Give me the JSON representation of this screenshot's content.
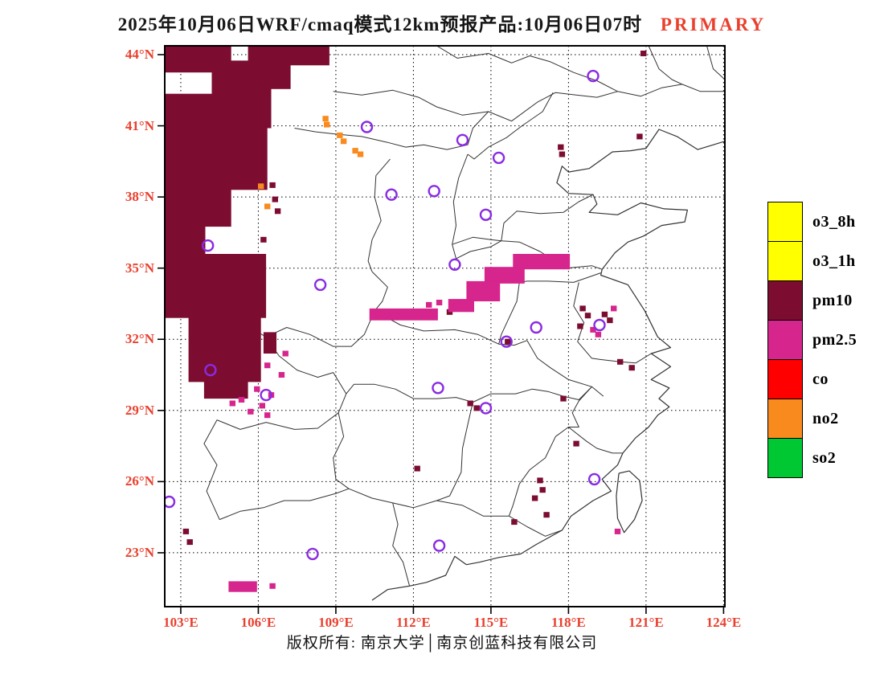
{
  "title": {
    "main": "2025年10月06日WRF/cmaq模式12km预报产品:10月06日07时",
    "tag": "PRIMARY"
  },
  "colors": {
    "accent_red": "#e9402e",
    "map_line": "#333333",
    "grid_line": "#000000",
    "frame": "#000000"
  },
  "axes": {
    "lat_labels": [
      "44°N",
      "41°N",
      "38°N",
      "35°N",
      "32°N",
      "29°N",
      "26°N",
      "23°N"
    ],
    "lat_values": [
      44,
      41,
      38,
      35,
      32,
      29,
      26,
      23
    ],
    "lon_labels": [
      "103°E",
      "106°E",
      "109°E",
      "112°E",
      "115°E",
      "118°E",
      "121°E",
      "124°E"
    ],
    "lon_values": [
      103,
      106,
      109,
      112,
      115,
      118,
      121,
      124
    ]
  },
  "legend": {
    "items": [
      {
        "label": "o3_8h",
        "color": "#ffff00"
      },
      {
        "label": "o3_1h",
        "color": "#ffff00"
      },
      {
        "label": "pm10",
        "color": "#7c0d30"
      },
      {
        "label": "pm2.5",
        "color": "#d6258c"
      },
      {
        "label": "co",
        "color": "#fe0000"
      },
      {
        "label": "no2",
        "color": "#f98a1e"
      },
      {
        "label": "so2",
        "color": "#00c832"
      }
    ]
  },
  "map_overlays": {
    "pm10_color": "#7c0d30",
    "pm25_color": "#d6258c",
    "no2_color": "#f98a1e",
    "marker_color": "#8a2be2",
    "pm10_blocks": [
      [
        102.38,
        43.25,
        104.95,
        44.38
      ],
      [
        105.6,
        43.55,
        108.75,
        44.38
      ],
      [
        104.2,
        42.55,
        107.25,
        43.75
      ],
      [
        102.38,
        40.9,
        104.35,
        42.35
      ],
      [
        104.2,
        40.9,
        106.5,
        42.9
      ],
      [
        102.38,
        38.3,
        106.35,
        41.1
      ],
      [
        102.38,
        36.75,
        104.95,
        38.5
      ],
      [
        102.38,
        35.1,
        103.95,
        36.9
      ],
      [
        102.38,
        32.9,
        106.3,
        35.6
      ],
      [
        103.3,
        30.2,
        106.1,
        33.1
      ],
      [
        103.9,
        29.5,
        105.6,
        30.4
      ],
      [
        106.2,
        31.4,
        106.7,
        32.3
      ]
    ],
    "pm10_cells": [
      [
        106.55,
        38.5
      ],
      [
        106.65,
        37.9
      ],
      [
        106.75,
        37.4
      ],
      [
        106.2,
        36.2
      ],
      [
        120.9,
        44.05
      ],
      [
        120.75,
        40.55
      ],
      [
        117.7,
        40.1
      ],
      [
        117.75,
        39.8
      ],
      [
        114.55,
        34.0
      ],
      [
        114.8,
        33.75
      ],
      [
        113.4,
        33.15
      ],
      [
        118.55,
        33.3
      ],
      [
        118.75,
        33.0
      ],
      [
        118.45,
        32.55
      ],
      [
        119.4,
        33.05
      ],
      [
        119.6,
        32.8
      ],
      [
        120.0,
        31.05
      ],
      [
        120.45,
        30.8
      ],
      [
        115.65,
        31.9
      ],
      [
        114.2,
        29.3
      ],
      [
        114.45,
        29.1
      ],
      [
        117.8,
        29.5
      ],
      [
        112.15,
        26.55
      ],
      [
        116.9,
        26.05
      ],
      [
        117.0,
        25.65
      ],
      [
        116.7,
        25.3
      ],
      [
        117.15,
        24.6
      ],
      [
        118.3,
        27.6
      ],
      [
        115.9,
        24.3
      ],
      [
        103.2,
        23.9
      ],
      [
        103.35,
        23.45
      ]
    ],
    "pm25_blocks": [
      [
        115.85,
        34.95,
        118.05,
        35.6
      ],
      [
        114.75,
        34.35,
        116.3,
        35.05
      ],
      [
        114.05,
        33.6,
        115.35,
        34.45
      ],
      [
        113.35,
        33.15,
        114.35,
        33.7
      ],
      [
        110.3,
        32.8,
        112.95,
        33.3
      ],
      [
        104.85,
        21.35,
        105.95,
        21.8
      ]
    ],
    "pm25_cells": [
      [
        106.35,
        30.9
      ],
      [
        106.9,
        30.5
      ],
      [
        105.95,
        29.9
      ],
      [
        106.5,
        29.65
      ],
      [
        105.35,
        29.45
      ],
      [
        106.15,
        29.2
      ],
      [
        105.7,
        28.95
      ],
      [
        106.35,
        28.8
      ],
      [
        105.0,
        29.3
      ],
      [
        107.05,
        31.4
      ],
      [
        113.0,
        33.55
      ],
      [
        112.6,
        33.45
      ],
      [
        118.95,
        32.4
      ],
      [
        119.15,
        32.2
      ],
      [
        119.75,
        33.3
      ],
      [
        106.55,
        21.6
      ],
      [
        119.9,
        23.9
      ]
    ],
    "no2_cells": [
      [
        108.6,
        41.3
      ],
      [
        108.65,
        41.05
      ],
      [
        109.15,
        40.6
      ],
      [
        109.3,
        40.35
      ],
      [
        109.75,
        39.95
      ],
      [
        109.95,
        39.8
      ],
      [
        106.1,
        38.45
      ],
      [
        106.35,
        37.6
      ]
    ],
    "city_markers": [
      [
        118.95,
        43.1
      ],
      [
        110.2,
        40.95
      ],
      [
        113.9,
        40.4
      ],
      [
        115.3,
        39.65
      ],
      [
        111.15,
        38.1
      ],
      [
        112.8,
        38.25
      ],
      [
        114.8,
        37.25
      ],
      [
        113.6,
        35.15
      ],
      [
        108.4,
        34.3
      ],
      [
        104.05,
        35.95
      ],
      [
        115.6,
        31.9
      ],
      [
        116.75,
        32.5
      ],
      [
        119.2,
        32.6
      ],
      [
        104.15,
        30.7
      ],
      [
        106.3,
        29.65
      ],
      [
        112.95,
        29.95
      ],
      [
        114.8,
        29.1
      ],
      [
        102.55,
        25.15
      ],
      [
        108.1,
        22.95
      ],
      [
        113.0,
        23.3
      ],
      [
        119.0,
        26.1
      ]
    ]
  },
  "footer": {
    "copyright": "版权所有: 南京大学│南京创蓝科技有限公司"
  }
}
